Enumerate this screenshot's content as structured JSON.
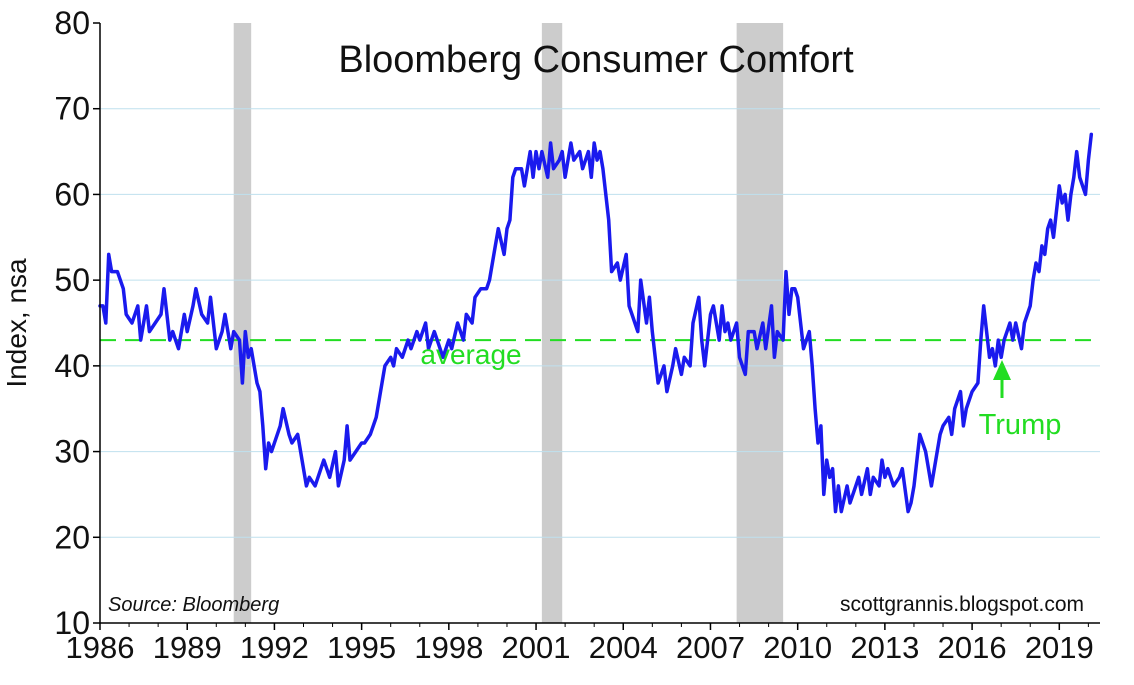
{
  "chart_data": {
    "type": "line",
    "title": "Bloomberg Consumer Comfort",
    "ylabel": "Index, nsa",
    "xlabel": "",
    "ylim": [
      10,
      80
    ],
    "xlim": [
      1986,
      2020.4
    ],
    "yticks": [
      10,
      20,
      30,
      40,
      50,
      60,
      70,
      80
    ],
    "xticks": [
      "1986",
      "1989",
      "1992",
      "1995",
      "1998",
      "2001",
      "2004",
      "2007",
      "2010",
      "2013",
      "2016",
      "2019"
    ],
    "grid": "horizontal",
    "source_note": "Source: Bloomberg",
    "watermark": "scottgrannis.blogspot.com",
    "average": {
      "value": 43,
      "label": "average",
      "color": "#22dd22"
    },
    "annotation": {
      "text": "Trump",
      "x": 2017.0,
      "y": 43,
      "color": "#22dd22"
    },
    "recessions": [
      [
        1990.6,
        1991.2
      ],
      [
        2001.2,
        2001.9
      ],
      [
        2007.9,
        2009.5
      ]
    ],
    "series": [
      {
        "color": "#1a1aee",
        "points": [
          [
            1986.0,
            47
          ],
          [
            1986.1,
            47
          ],
          [
            1986.2,
            45
          ],
          [
            1986.3,
            53
          ],
          [
            1986.4,
            51
          ],
          [
            1986.6,
            51
          ],
          [
            1986.8,
            49
          ],
          [
            1986.9,
            46
          ],
          [
            1987.1,
            45
          ],
          [
            1987.3,
            47
          ],
          [
            1987.4,
            43
          ],
          [
            1987.6,
            47
          ],
          [
            1987.7,
            44
          ],
          [
            1987.9,
            45
          ],
          [
            1988.1,
            46
          ],
          [
            1988.2,
            49
          ],
          [
            1988.4,
            43
          ],
          [
            1988.5,
            44
          ],
          [
            1988.7,
            42
          ],
          [
            1988.9,
            46
          ],
          [
            1989.0,
            44
          ],
          [
            1989.2,
            47
          ],
          [
            1989.3,
            49
          ],
          [
            1989.5,
            46
          ],
          [
            1989.7,
            45
          ],
          [
            1989.8,
            48
          ],
          [
            1990.0,
            42
          ],
          [
            1990.2,
            44
          ],
          [
            1990.3,
            46
          ],
          [
            1990.5,
            42
          ],
          [
            1990.6,
            44
          ],
          [
            1990.8,
            43
          ],
          [
            1990.9,
            38
          ],
          [
            1991.0,
            44
          ],
          [
            1991.1,
            41
          ],
          [
            1991.2,
            42
          ],
          [
            1991.4,
            38
          ],
          [
            1991.5,
            37
          ],
          [
            1991.6,
            33
          ],
          [
            1991.7,
            28
          ],
          [
            1991.8,
            31
          ],
          [
            1991.9,
            30
          ],
          [
            1992.0,
            31
          ],
          [
            1992.2,
            33
          ],
          [
            1992.3,
            35
          ],
          [
            1992.5,
            32
          ],
          [
            1992.6,
            31
          ],
          [
            1992.8,
            32
          ],
          [
            1992.9,
            30
          ],
          [
            1993.1,
            26
          ],
          [
            1993.2,
            27
          ],
          [
            1993.4,
            26
          ],
          [
            1993.6,
            28
          ],
          [
            1993.7,
            29
          ],
          [
            1993.9,
            27
          ],
          [
            1994.1,
            30
          ],
          [
            1994.2,
            26
          ],
          [
            1994.4,
            29
          ],
          [
            1994.5,
            33
          ],
          [
            1994.6,
            29
          ],
          [
            1994.8,
            30
          ],
          [
            1995.0,
            31
          ],
          [
            1995.1,
            31
          ],
          [
            1995.3,
            32
          ],
          [
            1995.5,
            34
          ],
          [
            1995.7,
            38
          ],
          [
            1995.8,
            40
          ],
          [
            1996.0,
            41
          ],
          [
            1996.1,
            40
          ],
          [
            1996.2,
            42
          ],
          [
            1996.4,
            41
          ],
          [
            1996.6,
            43
          ],
          [
            1996.7,
            42
          ],
          [
            1996.9,
            44
          ],
          [
            1997.0,
            43
          ],
          [
            1997.2,
            45
          ],
          [
            1997.3,
            42
          ],
          [
            1997.5,
            44
          ],
          [
            1997.6,
            43
          ],
          [
            1997.8,
            41
          ],
          [
            1998.0,
            43
          ],
          [
            1998.1,
            42
          ],
          [
            1998.3,
            45
          ],
          [
            1998.5,
            43
          ],
          [
            1998.6,
            46
          ],
          [
            1998.8,
            45
          ],
          [
            1998.9,
            48
          ],
          [
            1999.1,
            49
          ],
          [
            1999.3,
            49
          ],
          [
            1999.4,
            50
          ],
          [
            1999.6,
            54
          ],
          [
            1999.7,
            56
          ],
          [
            1999.9,
            53
          ],
          [
            2000.0,
            56
          ],
          [
            2000.1,
            57
          ],
          [
            2000.2,
            62
          ],
          [
            2000.3,
            63
          ],
          [
            2000.5,
            63
          ],
          [
            2000.6,
            61
          ],
          [
            2000.8,
            65
          ],
          [
            2000.9,
            62
          ],
          [
            2001.0,
            65
          ],
          [
            2001.1,
            63
          ],
          [
            2001.2,
            65
          ],
          [
            2001.4,
            62
          ],
          [
            2001.5,
            66
          ],
          [
            2001.6,
            63
          ],
          [
            2001.8,
            64
          ],
          [
            2001.9,
            65
          ],
          [
            2002.0,
            62
          ],
          [
            2002.2,
            66
          ],
          [
            2002.3,
            64
          ],
          [
            2002.5,
            65
          ],
          [
            2002.6,
            63
          ],
          [
            2002.8,
            65
          ],
          [
            2002.9,
            62
          ],
          [
            2003.0,
            66
          ],
          [
            2003.1,
            64
          ],
          [
            2003.2,
            65
          ],
          [
            2003.3,
            63
          ],
          [
            2003.5,
            57
          ],
          [
            2003.6,
            51
          ],
          [
            2003.8,
            52
          ],
          [
            2003.9,
            50
          ],
          [
            2004.1,
            53
          ],
          [
            2004.2,
            47
          ],
          [
            2004.3,
            46
          ],
          [
            2004.5,
            44
          ],
          [
            2004.6,
            50
          ],
          [
            2004.8,
            45
          ],
          [
            2004.9,
            48
          ],
          [
            2005.0,
            44
          ],
          [
            2005.1,
            41
          ],
          [
            2005.2,
            38
          ],
          [
            2005.4,
            40
          ],
          [
            2005.5,
            37
          ],
          [
            2005.7,
            40
          ],
          [
            2005.8,
            42
          ],
          [
            2006.0,
            39
          ],
          [
            2006.1,
            41
          ],
          [
            2006.3,
            40
          ],
          [
            2006.4,
            45
          ],
          [
            2006.6,
            48
          ],
          [
            2006.7,
            43
          ],
          [
            2006.8,
            40
          ],
          [
            2007.0,
            46
          ],
          [
            2007.1,
            47
          ],
          [
            2007.3,
            43
          ],
          [
            2007.4,
            47
          ],
          [
            2007.5,
            44
          ],
          [
            2007.6,
            45
          ],
          [
            2007.7,
            43
          ],
          [
            2007.9,
            45
          ],
          [
            2008.0,
            41
          ],
          [
            2008.2,
            39
          ],
          [
            2008.3,
            44
          ],
          [
            2008.5,
            44
          ],
          [
            2008.6,
            42
          ],
          [
            2008.8,
            45
          ],
          [
            2008.9,
            42
          ],
          [
            2009.1,
            47
          ],
          [
            2009.2,
            41
          ],
          [
            2009.3,
            44
          ],
          [
            2009.5,
            43
          ],
          [
            2009.6,
            51
          ],
          [
            2009.7,
            46
          ],
          [
            2009.8,
            49
          ],
          [
            2009.9,
            49
          ],
          [
            2010.0,
            48
          ],
          [
            2010.2,
            42
          ],
          [
            2010.4,
            44
          ],
          [
            2010.5,
            40
          ],
          [
            2010.6,
            35
          ],
          [
            2010.7,
            31
          ],
          [
            2010.8,
            33
          ],
          [
            2010.9,
            25
          ],
          [
            2011.0,
            29
          ],
          [
            2011.1,
            27
          ],
          [
            2011.2,
            28
          ],
          [
            2011.3,
            23
          ],
          [
            2011.4,
            26
          ],
          [
            2011.5,
            23
          ],
          [
            2011.7,
            26
          ],
          [
            2011.8,
            24
          ],
          [
            2011.9,
            25
          ],
          [
            2012.0,
            26
          ],
          [
            2012.1,
            27
          ],
          [
            2012.2,
            25
          ],
          [
            2012.4,
            28
          ],
          [
            2012.5,
            25
          ],
          [
            2012.6,
            27
          ],
          [
            2012.8,
            26
          ],
          [
            2012.9,
            29
          ],
          [
            2013.0,
            27
          ],
          [
            2013.1,
            28
          ],
          [
            2013.3,
            26
          ],
          [
            2013.5,
            27
          ],
          [
            2013.6,
            28
          ],
          [
            2013.8,
            23
          ],
          [
            2013.9,
            24
          ],
          [
            2014.0,
            26
          ],
          [
            2014.2,
            32
          ],
          [
            2014.3,
            31
          ],
          [
            2014.4,
            30
          ],
          [
            2014.5,
            28
          ],
          [
            2014.6,
            26
          ],
          [
            2014.8,
            30
          ],
          [
            2014.9,
            32
          ],
          [
            2015.0,
            33
          ],
          [
            2015.2,
            34
          ],
          [
            2015.3,
            32
          ],
          [
            2015.4,
            35
          ],
          [
            2015.6,
            37
          ],
          [
            2015.7,
            33
          ],
          [
            2015.8,
            35
          ],
          [
            2015.9,
            36
          ],
          [
            2016.0,
            37
          ],
          [
            2016.2,
            38
          ],
          [
            2016.3,
            43
          ],
          [
            2016.4,
            47
          ],
          [
            2016.5,
            44
          ],
          [
            2016.6,
            41
          ],
          [
            2016.7,
            42
          ],
          [
            2016.8,
            40
          ],
          [
            2016.9,
            43
          ],
          [
            2017.0,
            41
          ],
          [
            2017.1,
            43
          ],
          [
            2017.2,
            44
          ],
          [
            2017.3,
            45
          ],
          [
            2017.4,
            43
          ],
          [
            2017.5,
            45
          ],
          [
            2017.7,
            42
          ],
          [
            2017.8,
            45
          ],
          [
            2017.9,
            46
          ],
          [
            2018.0,
            47
          ],
          [
            2018.1,
            50
          ],
          [
            2018.2,
            52
          ],
          [
            2018.3,
            51
          ],
          [
            2018.4,
            54
          ],
          [
            2018.5,
            53
          ],
          [
            2018.6,
            56
          ],
          [
            2018.7,
            57
          ],
          [
            2018.8,
            55
          ],
          [
            2018.9,
            58
          ],
          [
            2019.0,
            61
          ],
          [
            2019.1,
            59
          ],
          [
            2019.2,
            60
          ],
          [
            2019.3,
            57
          ],
          [
            2019.4,
            60
          ],
          [
            2019.5,
            62
          ],
          [
            2019.6,
            65
          ],
          [
            2019.7,
            62
          ],
          [
            2019.8,
            61
          ],
          [
            2019.9,
            60
          ],
          [
            2020.0,
            64
          ],
          [
            2020.1,
            67
          ]
        ]
      }
    ]
  }
}
